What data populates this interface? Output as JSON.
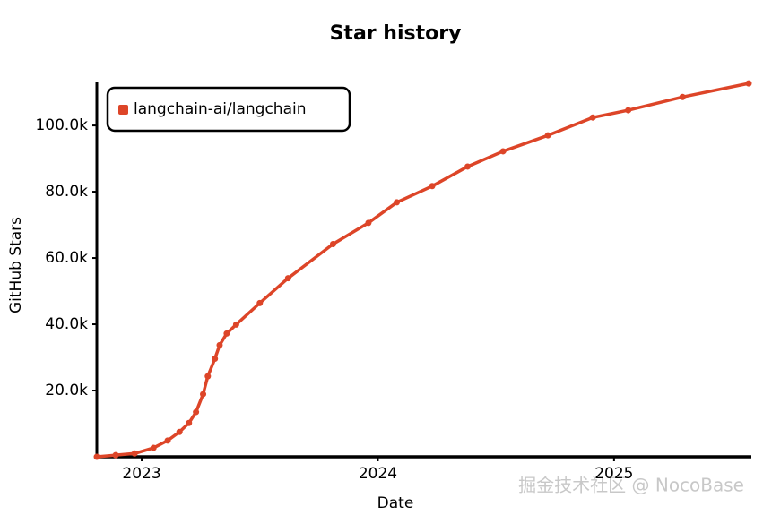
{
  "chart_data": {
    "type": "line",
    "title": "Star history",
    "x_label": "Date",
    "y_label": "GitHub Stars",
    "x": [
      2022.81,
      2022.89,
      2022.97,
      2023.05,
      2023.11,
      2023.16,
      2023.2,
      2023.23,
      2023.26,
      2023.28,
      2023.31,
      2023.33,
      2023.36,
      2023.4,
      2023.5,
      2023.62,
      2023.81,
      2023.96,
      2024.08,
      2024.23,
      2024.38,
      2024.53,
      2024.72,
      2024.91,
      2025.06,
      2025.29,
      2025.57
    ],
    "series": [
      {
        "name": "langchain-ai/langchain",
        "color": "#dd4528",
        "values": [
          0,
          500,
          1000,
          2700,
          4900,
          7500,
          10200,
          13500,
          18900,
          24300,
          29600,
          33700,
          37200,
          39900,
          46400,
          53900,
          64200,
          70600,
          76800,
          81700,
          87600,
          92200,
          97000,
          102400,
          104600,
          108600,
          112700
        ]
      }
    ],
    "xlim": [
      2022.81,
      2025.57
    ],
    "xticks": [
      2023,
      2024,
      2025
    ],
    "ylim": [
      0,
      113000
    ],
    "yticks": [
      {
        "value": 20000,
        "label": "20.0k"
      },
      {
        "value": 40000,
        "label": "40.0k"
      },
      {
        "value": 60000,
        "label": "60.0k"
      },
      {
        "value": 80000,
        "label": "80.0k"
      },
      {
        "value": 100000,
        "label": "100.0k"
      }
    ],
    "legend": "upper left",
    "watermark": "掘金技术社区 @ NocoBase"
  }
}
